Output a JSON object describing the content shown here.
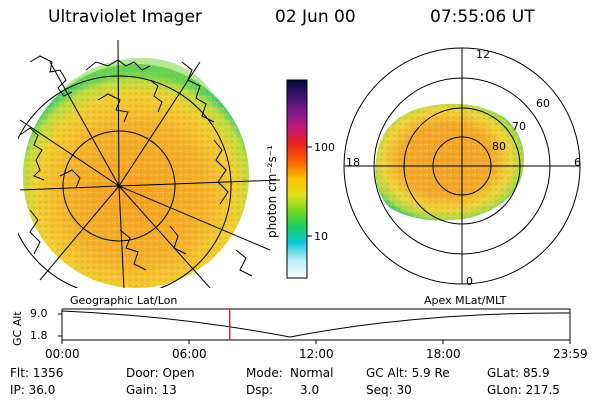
{
  "header": {
    "instrument": "Ultraviolet Imager",
    "date": "02 Jun 00",
    "time": "07:55:06 UT"
  },
  "colorbar": {
    "unit_label": "photon cm⁻²s⁻¹",
    "ticks": [
      "100",
      "10"
    ],
    "colors": [
      "#000a3a",
      "#3a1070",
      "#7a1a88",
      "#c41878",
      "#e62020",
      "#ff6a00",
      "#ffc000",
      "#e2e21a",
      "#7ad620",
      "#18d060",
      "#10c8d8",
      "#b8eef4",
      "#ffffff"
    ]
  },
  "left_panel": {
    "label": "Geographic Lat/Lon"
  },
  "right_panel": {
    "label": "Apex MLat/MLT",
    "mlt_labels": [
      "12",
      "18",
      "6",
      "0"
    ],
    "lat_labels": [
      "60",
      "70",
      "80"
    ]
  },
  "timeline": {
    "ylabel": "GC Alt",
    "y_ticks": [
      "9.0",
      "1.8"
    ],
    "x_ticks": [
      "00:00",
      "06:00",
      "12:00",
      "18:00",
      "23:59"
    ],
    "marker_time": "07:55",
    "marker_color": "#e02020"
  },
  "status": {
    "row1": {
      "flt": "Flt: 1356",
      "door": "Door: Open",
      "mode_label": "Mode:",
      "mode_value": "Normal",
      "gcalt": "GC Alt: 5.9 Re",
      "glat": "GLat:  85.9"
    },
    "row2": {
      "ip": "IP: 36.0",
      "gain": "Gain: 13",
      "dsp_label": "Dsp:",
      "dsp_value": "3.0",
      "seq": "Seq: 30",
      "glon": "GLon: 217.5"
    }
  }
}
